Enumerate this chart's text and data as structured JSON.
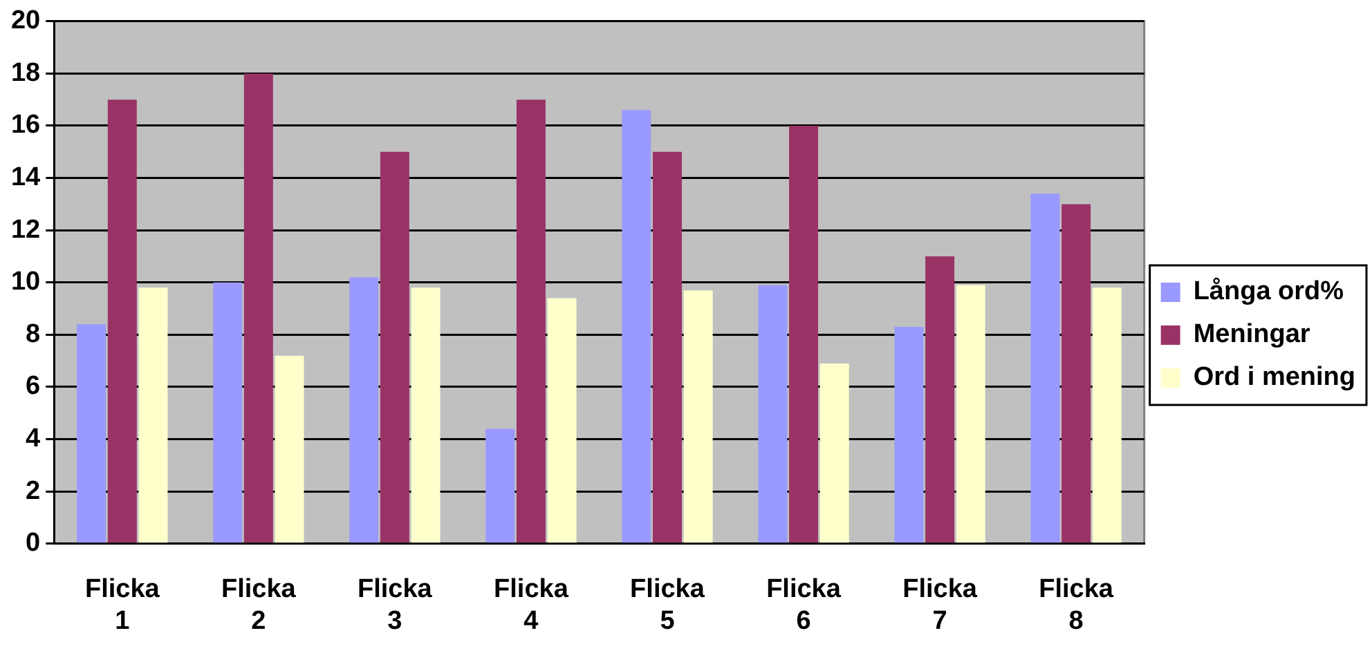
{
  "chart_data": {
    "type": "bar",
    "categories": [
      "Flicka 1",
      "Flicka 2",
      "Flicka 3",
      "Flicka 4",
      "Flicka 5",
      "Flicka 6",
      "Flicka 7",
      "Flicka 8"
    ],
    "series": [
      {
        "name": "Långa ord%",
        "color": "#9999ff",
        "values": [
          8.4,
          10,
          10.2,
          4.4,
          16.6,
          9.9,
          8.3,
          13.4
        ]
      },
      {
        "name": "Meningar",
        "color": "#993366",
        "values": [
          17,
          18,
          15,
          17,
          15,
          16,
          11,
          13
        ]
      },
      {
        "name": "Ord i mening",
        "color": "#ffffcc",
        "values": [
          9.8,
          7.2,
          9.8,
          9.4,
          9.7,
          6.9,
          9.9,
          9.8
        ]
      }
    ],
    "ylim": [
      0,
      20
    ],
    "yticks": [
      0,
      2,
      4,
      6,
      8,
      10,
      12,
      14,
      16,
      18,
      20
    ],
    "grid": "y",
    "legend": "right"
  }
}
